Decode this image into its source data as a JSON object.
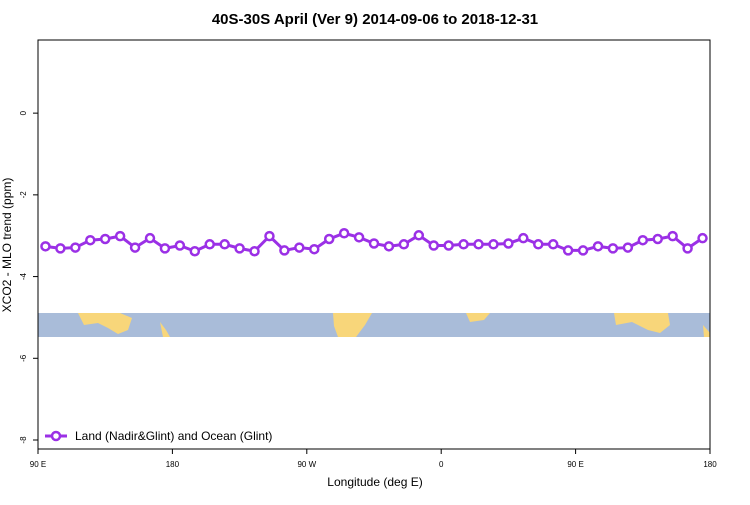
{
  "chart_data": {
    "type": "line",
    "title": "40S-30S April (Ver 9)   2014-09-06 to 2018-12-31",
    "x_label": "Longitude (deg E)",
    "y_label": "XCO2 - MLO trend (ppm)",
    "x": [
      95,
      105,
      115,
      125,
      135,
      145,
      155,
      165,
      175,
      185,
      195,
      205,
      215,
      225,
      235,
      245,
      255,
      265,
      275,
      285,
      295,
      305,
      315,
      325,
      335,
      345,
      355,
      365,
      375,
      385,
      395,
      405,
      415,
      425,
      435,
      445,
      455,
      465,
      475,
      485,
      495,
      505,
      515,
      525,
      535
    ],
    "series": [
      {
        "name": "Land (Nadir&Glint) and Ocean (Glint)",
        "color": "#9b30e6",
        "values": [
          -3.26,
          -3.31,
          -3.29,
          -3.11,
          -3.08,
          -3.01,
          -3.29,
          -3.06,
          -3.31,
          -3.24,
          -3.38,
          -3.21,
          -3.21,
          -3.31,
          -3.38,
          -3.01,
          -3.36,
          -3.29,
          -3.33,
          -3.08,
          -2.94,
          -3.04,
          -3.19,
          -3.26,
          -3.21,
          -2.99,
          -3.24,
          -3.24,
          -3.21,
          -3.21,
          -3.21,
          -3.19,
          -3.06,
          -3.21,
          -3.21,
          -3.36,
          -3.36,
          -3.26,
          -3.31,
          -3.29,
          -3.11,
          -3.08,
          -3.01,
          -3.31,
          -3.06
        ]
      }
    ],
    "xlim": [
      90,
      540
    ],
    "xticks": [
      {
        "value": 90,
        "label": "90 E"
      },
      {
        "value": 180,
        "label": "180"
      },
      {
        "value": 270,
        "label": "90 W"
      },
      {
        "value": 360,
        "label": "0"
      },
      {
        "value": 450,
        "label": "90 E"
      },
      {
        "value": 540,
        "label": "180"
      }
    ],
    "ylim": [
      -8.22,
      1.79
    ],
    "yticks": [
      0,
      -2,
      -4,
      -6,
      -8
    ],
    "legend": "bottom-left"
  }
}
